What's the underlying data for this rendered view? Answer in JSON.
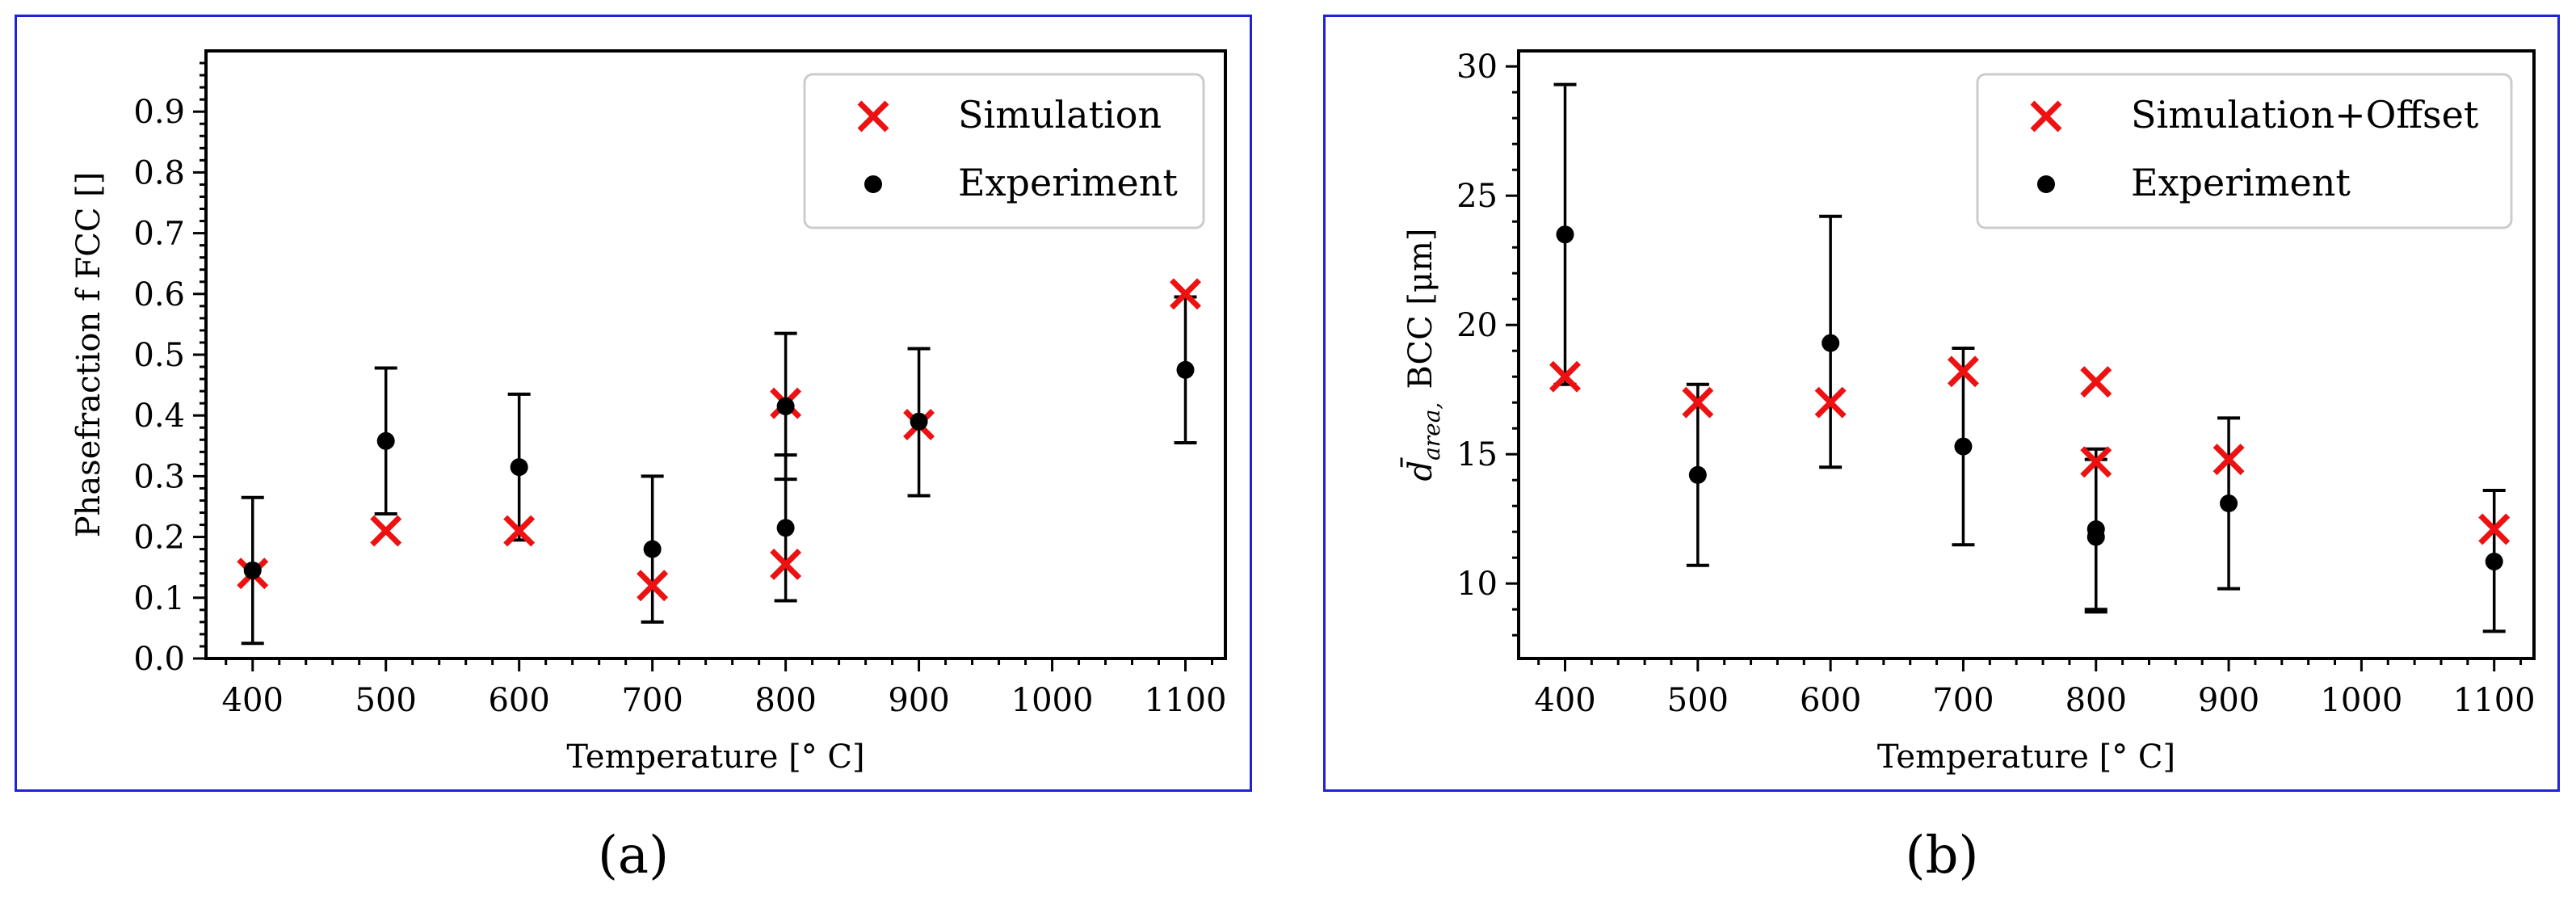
{
  "chart_data": [
    {
      "id": "a",
      "type": "scatter",
      "caption": "(a)",
      "xlabel": "Temperature [° C]",
      "ylabel": "Phasefraction f  FCC []",
      "xlim": [
        365,
        1130
      ],
      "ylim": [
        0,
        1.0
      ],
      "xticks": [
        400,
        500,
        600,
        700,
        800,
        900,
        1000,
        1100
      ],
      "yticks": [
        0.0,
        0.1,
        0.2,
        0.3,
        0.4,
        0.5,
        0.6,
        0.7,
        0.8,
        0.9
      ],
      "ytick_labels": [
        "0.0",
        "0.1",
        "0.2",
        "0.3",
        "0.4",
        "0.5",
        "0.6",
        "0.7",
        "0.8",
        "0.9"
      ],
      "legend": {
        "position": "top-right",
        "entries": [
          "Simulation",
          "Experiment"
        ]
      },
      "series": [
        {
          "name": "Simulation",
          "marker": "x",
          "color": "#ee1111",
          "points": [
            {
              "x": 400,
              "y": 0.14
            },
            {
              "x": 500,
              "y": 0.21
            },
            {
              "x": 600,
              "y": 0.21
            },
            {
              "x": 700,
              "y": 0.12
            },
            {
              "x": 800,
              "y": 0.42
            },
            {
              "x": 800,
              "y": 0.155
            },
            {
              "x": 900,
              "y": 0.385
            },
            {
              "x": 1100,
              "y": 0.6
            }
          ]
        },
        {
          "name": "Experiment",
          "marker": "o",
          "color": "#000000",
          "points": [
            {
              "x": 400,
              "y": 0.145,
              "ylow": 0.025,
              "yhigh": 0.265
            },
            {
              "x": 500,
              "y": 0.358,
              "ylow": 0.238,
              "yhigh": 0.478
            },
            {
              "x": 600,
              "y": 0.315,
              "ylow": 0.195,
              "yhigh": 0.435
            },
            {
              "x": 700,
              "y": 0.18,
              "ylow": 0.06,
              "yhigh": 0.3
            },
            {
              "x": 800,
              "y": 0.415,
              "ylow": 0.295,
              "yhigh": 0.535
            },
            {
              "x": 800,
              "y": 0.215,
              "ylow": 0.095,
              "yhigh": 0.335
            },
            {
              "x": 900,
              "y": 0.39,
              "ylow": 0.268,
              "yhigh": 0.51
            },
            {
              "x": 1100,
              "y": 0.475,
              "ylow": 0.355,
              "yhigh": 0.595
            }
          ]
        }
      ]
    },
    {
      "id": "b",
      "type": "scatter",
      "caption": "(b)",
      "xlabel": "Temperature [° C]",
      "ylabel_main": "d̄",
      "ylabel_sub": "area,",
      "ylabel_rest": "BCC [μm]",
      "xlim": [
        365,
        1130
      ],
      "ylim": [
        7.1,
        30.6
      ],
      "xticks": [
        400,
        500,
        600,
        700,
        800,
        900,
        1000,
        1100
      ],
      "yticks": [
        10,
        15,
        20,
        25,
        30
      ],
      "ytick_labels": [
        "10",
        "15",
        "20",
        "25",
        "30"
      ],
      "legend": {
        "position": "top-right",
        "entries": [
          "Simulation+Offset",
          "Experiment"
        ]
      },
      "series": [
        {
          "name": "Simulation+Offset",
          "marker": "x",
          "color": "#ee1111",
          "points": [
            {
              "x": 400,
              "y": 18.0
            },
            {
              "x": 500,
              "y": 17.0
            },
            {
              "x": 600,
              "y": 17.0
            },
            {
              "x": 700,
              "y": 18.2
            },
            {
              "x": 800,
              "y": 17.8
            },
            {
              "x": 800,
              "y": 14.7
            },
            {
              "x": 900,
              "y": 14.8
            },
            {
              "x": 1100,
              "y": 12.1
            }
          ]
        },
        {
          "name": "Experiment",
          "marker": "o",
          "color": "#000000",
          "points": [
            {
              "x": 400,
              "y": 23.5,
              "ylow": 17.7,
              "yhigh": 29.3
            },
            {
              "x": 500,
              "y": 14.2,
              "ylow": 10.7,
              "yhigh": 17.7
            },
            {
              "x": 600,
              "y": 19.3,
              "ylow": 14.5,
              "yhigh": 24.2
            },
            {
              "x": 700,
              "y": 15.3,
              "ylow": 11.5,
              "yhigh": 19.1
            },
            {
              "x": 800,
              "y": 12.1,
              "ylow": 9.0,
              "yhigh": 15.2
            },
            {
              "x": 800,
              "y": 11.8,
              "ylow": 8.9,
              "yhigh": 14.8
            },
            {
              "x": 900,
              "y": 13.1,
              "ylow": 9.8,
              "yhigh": 16.4
            },
            {
              "x": 1100,
              "y": 10.85,
              "ylow": 8.15,
              "yhigh": 13.6
            }
          ]
        }
      ]
    }
  ]
}
